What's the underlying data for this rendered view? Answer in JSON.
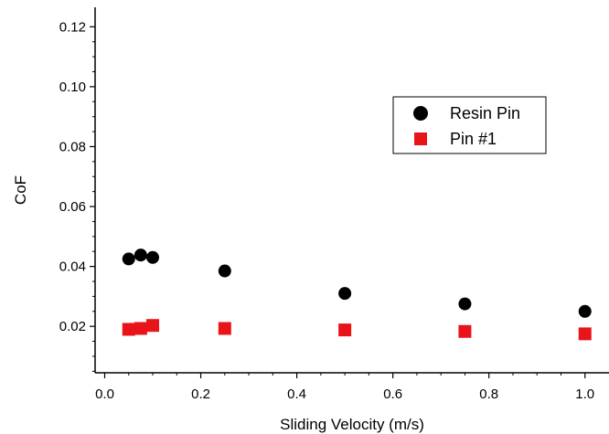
{
  "chart_data": {
    "type": "scatter",
    "title": "",
    "xlabel": "Sliding Velocity (m/s)",
    "ylabel": "CoF",
    "xlim": [
      -0.02,
      1.05
    ],
    "ylim": [
      0.0045,
      0.1265
    ],
    "xticks": [
      "0.0",
      "0.2",
      "0.4",
      "0.6",
      "0.8",
      "1.0"
    ],
    "yticks": [
      "0.02",
      "0.04",
      "0.06",
      "0.08",
      "0.10",
      "0.12"
    ],
    "grid": false,
    "legend_position": "upper-right-center",
    "series": [
      {
        "name": "Resin Pin",
        "marker": "circle",
        "color": "#000000",
        "points": [
          {
            "x": 0.05,
            "y": 0.0425
          },
          {
            "x": 0.075,
            "y": 0.0438
          },
          {
            "x": 0.1,
            "y": 0.043
          },
          {
            "x": 0.25,
            "y": 0.0385
          },
          {
            "x": 0.5,
            "y": 0.031
          },
          {
            "x": 0.75,
            "y": 0.0275
          },
          {
            "x": 1.0,
            "y": 0.025
          }
        ]
      },
      {
        "name": "Pin #1",
        "marker": "square",
        "color": "#e8141a",
        "points": [
          {
            "x": 0.05,
            "y": 0.019
          },
          {
            "x": 0.075,
            "y": 0.0193
          },
          {
            "x": 0.1,
            "y": 0.0203
          },
          {
            "x": 0.25,
            "y": 0.0193
          },
          {
            "x": 0.5,
            "y": 0.0188
          },
          {
            "x": 0.75,
            "y": 0.0183
          },
          {
            "x": 1.0,
            "y": 0.0175
          }
        ]
      }
    ]
  }
}
